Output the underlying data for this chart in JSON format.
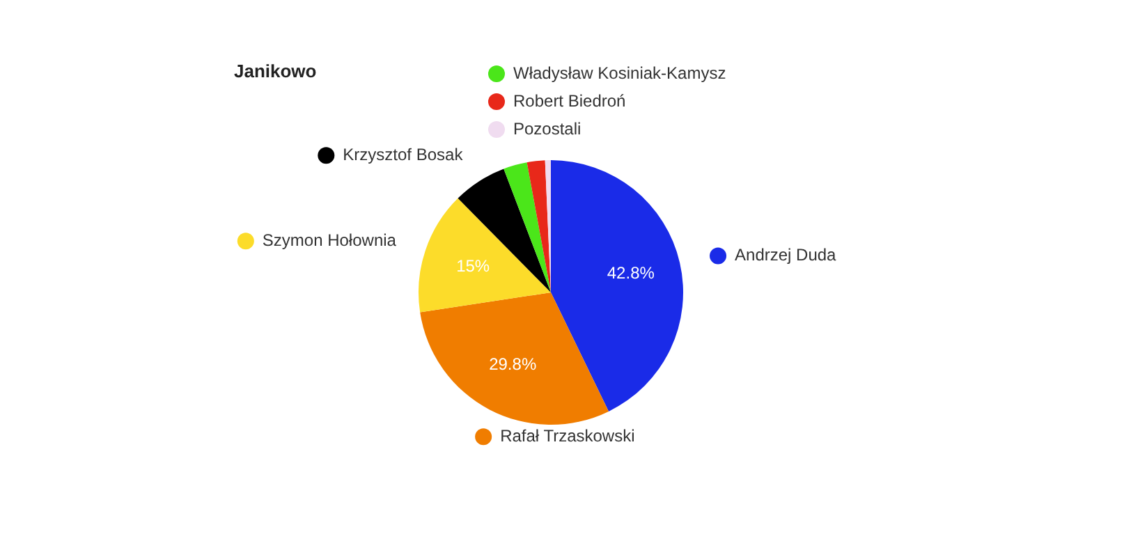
{
  "chart_data": {
    "type": "pie",
    "title": "Janikowo",
    "categories": [
      "Andrzej Duda",
      "Rafał Trzaskowski",
      "Szymon Hołownia",
      "Krzysztof Bosak",
      "Władysław Kosiniak-Kamysz",
      "Robert Biedroń",
      "Pozostali"
    ],
    "values": [
      42.8,
      29.8,
      15,
      6.6,
      2.9,
      2.2,
      0.7
    ],
    "colors": [
      "#1a2be8",
      "#f07d00",
      "#fcdc2a",
      "#000000",
      "#4be61a",
      "#e8281a",
      "#f0dcf0"
    ],
    "value_labels": [
      "42.8%",
      "29.8%",
      "15%",
      null,
      null,
      null,
      null
    ],
    "legend": "top left"
  }
}
